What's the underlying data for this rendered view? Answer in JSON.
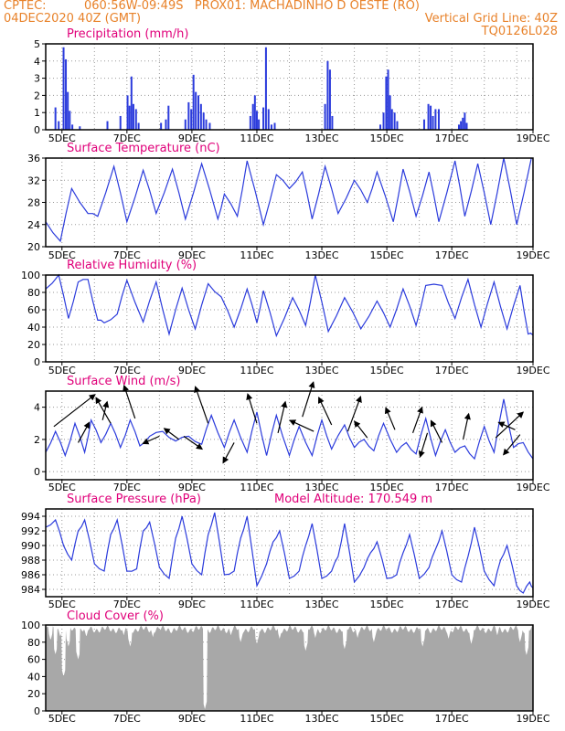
{
  "header": {
    "line1_left": "CPTEC:",
    "line1_mid": "060:56W-09:49S   PROX01: MACHADINHO D OESTE (RO)",
    "line2_left": "04DEC2020 40Z (GMT)",
    "line2_right": "Vertical Grid Line: 40Z",
    "line3_right": "TQ0126L028"
  },
  "colors": {
    "header": "#e8822a",
    "title": "#e0007a",
    "series": "#2b3bdc",
    "cloud": "#a8a8a8",
    "wind_arrow": "#000000"
  },
  "x_ticks": [
    "5DEC",
    "7DEC",
    "9DEC",
    "11DEC",
    "13DEC",
    "15DEC",
    "17DEC",
    "19DEC"
  ],
  "chart_data": [
    {
      "type": "bar",
      "title": "Precipitation (mm/h)",
      "ylim": [
        0,
        5
      ],
      "yticks": [
        0,
        1,
        2,
        3,
        4,
        5
      ],
      "x_unit": "days since 4DEC 00Z",
      "bars": [
        [
          0.3,
          1.3
        ],
        [
          0.4,
          0.5
        ],
        [
          0.55,
          4.8
        ],
        [
          0.62,
          4.1
        ],
        [
          0.68,
          2.2
        ],
        [
          0.74,
          1.1
        ],
        [
          0.82,
          0.3
        ],
        [
          1.05,
          0.2
        ],
        [
          1.9,
          0.5
        ],
        [
          2.3,
          0.8
        ],
        [
          2.52,
          2.0
        ],
        [
          2.58,
          1.4
        ],
        [
          2.64,
          3.1
        ],
        [
          2.7,
          1.5
        ],
        [
          2.78,
          1.2
        ],
        [
          2.86,
          0.4
        ],
        [
          3.55,
          0.4
        ],
        [
          3.7,
          0.6
        ],
        [
          3.78,
          1.4
        ],
        [
          4.3,
          0.6
        ],
        [
          4.4,
          1.6
        ],
        [
          4.48,
          1.2
        ],
        [
          4.55,
          3.2
        ],
        [
          4.62,
          2.2
        ],
        [
          4.7,
          2.0
        ],
        [
          4.78,
          1.5
        ],
        [
          4.86,
          1.0
        ],
        [
          4.94,
          0.6
        ],
        [
          5.05,
          0.4
        ],
        [
          6.3,
          0.8
        ],
        [
          6.38,
          1.5
        ],
        [
          6.44,
          2.0
        ],
        [
          6.5,
          1.1
        ],
        [
          6.56,
          0.6
        ],
        [
          6.7,
          1.3
        ],
        [
          6.78,
          4.8
        ],
        [
          6.86,
          1.2
        ],
        [
          6.95,
          0.3
        ],
        [
          7.05,
          0.4
        ],
        [
          8.6,
          1.5
        ],
        [
          8.68,
          4.0
        ],
        [
          8.75,
          3.5
        ],
        [
          8.82,
          0.8
        ],
        [
          10.3,
          0.3
        ],
        [
          10.4,
          1.0
        ],
        [
          10.48,
          3.1
        ],
        [
          10.54,
          3.5
        ],
        [
          10.6,
          2.0
        ],
        [
          10.66,
          1.2
        ],
        [
          10.74,
          1.0
        ],
        [
          10.82,
          0.5
        ],
        [
          11.65,
          0.6
        ],
        [
          11.78,
          1.5
        ],
        [
          11.85,
          1.4
        ],
        [
          11.92,
          0.8
        ],
        [
          12.0,
          1.2
        ],
        [
          12.1,
          1.2
        ],
        [
          12.72,
          0.3
        ],
        [
          12.78,
          0.5
        ],
        [
          12.84,
          0.7
        ],
        [
          12.9,
          1.0
        ],
        [
          12.96,
          0.4
        ]
      ]
    },
    {
      "type": "line",
      "title": "Surface Temperature (nC)",
      "ylim": [
        20,
        36
      ],
      "yticks": [
        20,
        24,
        28,
        32,
        36
      ],
      "x_unit": "days since 4DEC 00Z",
      "x": [
        0.0,
        0.45,
        0.8,
        1.3,
        1.6,
        2.1,
        2.5,
        3.0,
        3.4,
        3.9,
        4.3,
        4.8,
        5.3,
        5.5,
        5.9,
        6.2,
        6.7,
        7.1,
        7.5,
        7.9,
        8.2,
        8.6,
        9.0,
        9.5,
        9.9,
        10.2,
        10.7,
        11.0,
        11.4,
        11.8,
        12.1,
        12.6,
        12.9,
        13.3,
        13.7,
        14.1,
        14.5,
        14.95
      ],
      "y": [
        24.5,
        21.0,
        30.5,
        26.0,
        25.5,
        34.5,
        24.5,
        33.8,
        26.0,
        34.0,
        25.0,
        35.0,
        25.0,
        29.5,
        25.5,
        35.5,
        24.0,
        33.0,
        30.5,
        33.5,
        25.0,
        34.5,
        26.0,
        32.0,
        28.0,
        33.5,
        24.5,
        34.0,
        25.5,
        33.5,
        24.5,
        35.5,
        25.5,
        35.0,
        24.0,
        36.0,
        24.0,
        36.0
      ]
    },
    {
      "type": "line",
      "title": "Relative Humidity (%)",
      "ylim": [
        0,
        100
      ],
      "yticks": [
        0,
        20,
        40,
        60,
        80,
        100
      ],
      "x_unit": "days since 4DEC 00Z",
      "x": [
        0.0,
        0.4,
        0.7,
        1.0,
        1.3,
        1.6,
        1.8,
        2.2,
        2.5,
        3.0,
        3.4,
        3.8,
        4.2,
        4.6,
        5.0,
        5.4,
        5.8,
        6.2,
        6.5,
        6.7,
        7.1,
        7.6,
        8.0,
        8.3,
        8.7,
        9.2,
        9.7,
        10.2,
        10.6,
        11.0,
        11.4,
        11.7,
        12.2,
        12.6,
        13.0,
        13.4,
        13.8,
        14.2,
        14.6,
        14.85,
        15.0
      ],
      "y": [
        84,
        100,
        50,
        92,
        95,
        48,
        45,
        55,
        94,
        46,
        92,
        32,
        85,
        38,
        90,
        75,
        40,
        84,
        45,
        82,
        30,
        74,
        42,
        100,
        35,
        74,
        38,
        70,
        40,
        84,
        42,
        88,
        88,
        50,
        95,
        40,
        92,
        38,
        88,
        32,
        31
      ]
    },
    {
      "type": "line",
      "title": "Surface Wind (m/s)",
      "ylim": [
        -0.5,
        5
      ],
      "yticks": [
        0,
        2,
        4
      ],
      "x_unit": "days since 4DEC 00Z",
      "x": [
        0.0,
        0.3,
        0.6,
        0.9,
        1.2,
        1.4,
        1.7,
        2.0,
        2.3,
        2.6,
        2.9,
        3.2,
        3.6,
        4.0,
        4.4,
        4.8,
        5.1,
        5.5,
        5.8,
        6.2,
        6.5,
        6.8,
        7.1,
        7.5,
        7.8,
        8.2,
        8.5,
        8.8,
        9.2,
        9.5,
        9.8,
        10.1,
        10.4,
        10.8,
        11.1,
        11.4,
        11.7,
        12.0,
        12.3,
        12.6,
        12.9,
        13.2,
        13.5,
        13.8,
        14.1,
        14.4,
        14.7,
        15.0
      ],
      "y": [
        1.2,
        2.5,
        1.0,
        3.0,
        1.2,
        3.2,
        1.8,
        3.0,
        1.5,
        3.2,
        1.6,
        2.2,
        2.5,
        1.9,
        2.2,
        1.7,
        3.5,
        1.5,
        3.2,
        1.2,
        3.7,
        1.0,
        3.5,
        1.0,
        2.8,
        1.0,
        3.2,
        1.4,
        2.9,
        1.5,
        2.0,
        1.3,
        3.0,
        1.2,
        1.8,
        1.1,
        3.3,
        1.0,
        2.6,
        1.2,
        1.6,
        0.8,
        2.8,
        1.2,
        4.5,
        1.5,
        1.8,
        0.8
      ],
      "arrows": [
        [
          0.25,
          2.8,
          45,
          -35
        ],
        [
          1.0,
          1.8,
          12,
          -22
        ],
        [
          1.75,
          3.2,
          5,
          -20
        ],
        [
          2.0,
          3.0,
          -16,
          -28
        ],
        [
          2.75,
          3.3,
          -12,
          -36
        ],
        [
          3.5,
          2.2,
          -18,
          8
        ],
        [
          4.1,
          2.0,
          -16,
          -12
        ],
        [
          4.25,
          2.2,
          20,
          14
        ],
        [
          5.0,
          3.0,
          -14,
          -40
        ],
        [
          5.8,
          1.8,
          -12,
          22
        ],
        [
          6.5,
          3.0,
          -10,
          -32
        ],
        [
          7.15,
          2.4,
          8,
          -34
        ],
        [
          7.9,
          3.4,
          12,
          -38
        ],
        [
          8.25,
          2.5,
          -26,
          -12
        ],
        [
          8.8,
          2.9,
          -14,
          -30
        ],
        [
          9.3,
          2.5,
          14,
          -38
        ],
        [
          9.9,
          2.1,
          -14,
          -18
        ],
        [
          10.75,
          2.6,
          -10,
          -24
        ],
        [
          11.3,
          2.4,
          10,
          -28
        ],
        [
          11.75,
          2.4,
          -8,
          26
        ],
        [
          12.2,
          1.8,
          -12,
          -24
        ],
        [
          12.85,
          2.0,
          6,
          -28
        ],
        [
          13.85,
          2.1,
          30,
          -28
        ],
        [
          14.45,
          2.6,
          -18,
          -8
        ],
        [
          14.6,
          2.3,
          -18,
          22
        ]
      ]
    },
    {
      "type": "line",
      "title": "Surface Pressure (hPa)",
      "subtitle": "Model Altitude: 170.549 m",
      "ylim": [
        983,
        995
      ],
      "yticks": [
        984,
        986,
        988,
        990,
        992,
        994
      ],
      "x_unit": "days since 4DEC 00Z",
      "x": [
        0.0,
        0.3,
        0.55,
        0.8,
        1.0,
        1.2,
        1.5,
        1.8,
        2.0,
        2.2,
        2.5,
        2.8,
        3.0,
        3.2,
        3.5,
        3.8,
        4.0,
        4.2,
        4.5,
        4.8,
        5.0,
        5.2,
        5.5,
        5.8,
        6.0,
        6.2,
        6.5,
        6.8,
        7.0,
        7.2,
        7.5,
        7.8,
        8.0,
        8.2,
        8.5,
        8.8,
        9.0,
        9.2,
        9.5,
        9.8,
        10.0,
        10.2,
        10.5,
        10.8,
        11.0,
        11.2,
        11.5,
        11.8,
        12.0,
        12.2,
        12.5,
        12.8,
        13.0,
        13.2,
        13.5,
        13.8,
        14.0,
        14.2,
        14.5,
        14.7,
        14.9,
        15.0
      ],
      "y": [
        992.5,
        993.5,
        990.0,
        988.0,
        992.0,
        993.5,
        987.5,
        986.5,
        991.5,
        993.5,
        986.5,
        986.8,
        992.0,
        993.2,
        987.0,
        985.5,
        991.0,
        994.0,
        987.5,
        986.0,
        991.5,
        994.5,
        986.0,
        986.5,
        991.0,
        994.0,
        984.5,
        987.5,
        990.5,
        992.0,
        985.5,
        986.5,
        990.0,
        993.0,
        985.5,
        986.5,
        988.5,
        993.0,
        985.0,
        987.0,
        989.0,
        990.5,
        985.5,
        986.0,
        989.0,
        991.5,
        985.5,
        987.0,
        989.5,
        992.0,
        986.0,
        985.0,
        988.5,
        992.5,
        986.5,
        984.5,
        988.0,
        990.0,
        984.5,
        983.5,
        985.0,
        984.2
      ]
    },
    {
      "type": "bar",
      "title": "Cloud Cover (%)",
      "ylim": [
        0,
        100
      ],
      "yticks": [
        0,
        20,
        40,
        60,
        80,
        100
      ],
      "x_unit": "days since 4DEC 00Z",
      "base": 95,
      "dips": [
        [
          0.15,
          82
        ],
        [
          0.3,
          66
        ],
        [
          0.45,
          86
        ],
        [
          0.55,
          40
        ],
        [
          0.7,
          75
        ],
        [
          1.0,
          60
        ],
        [
          1.25,
          86
        ],
        [
          2.4,
          88
        ],
        [
          2.6,
          75
        ],
        [
          3.3,
          86
        ],
        [
          4.9,
          2
        ],
        [
          5.7,
          88
        ],
        [
          6.0,
          80
        ],
        [
          6.5,
          78
        ],
        [
          7.2,
          84
        ],
        [
          8.0,
          70
        ],
        [
          8.3,
          85
        ],
        [
          9.2,
          72
        ],
        [
          9.6,
          85
        ],
        [
          10.1,
          80
        ],
        [
          11.6,
          75
        ],
        [
          12.4,
          84
        ],
        [
          13.1,
          78
        ],
        [
          13.9,
          88
        ],
        [
          14.6,
          80
        ],
        [
          14.8,
          65
        ]
      ]
    }
  ]
}
